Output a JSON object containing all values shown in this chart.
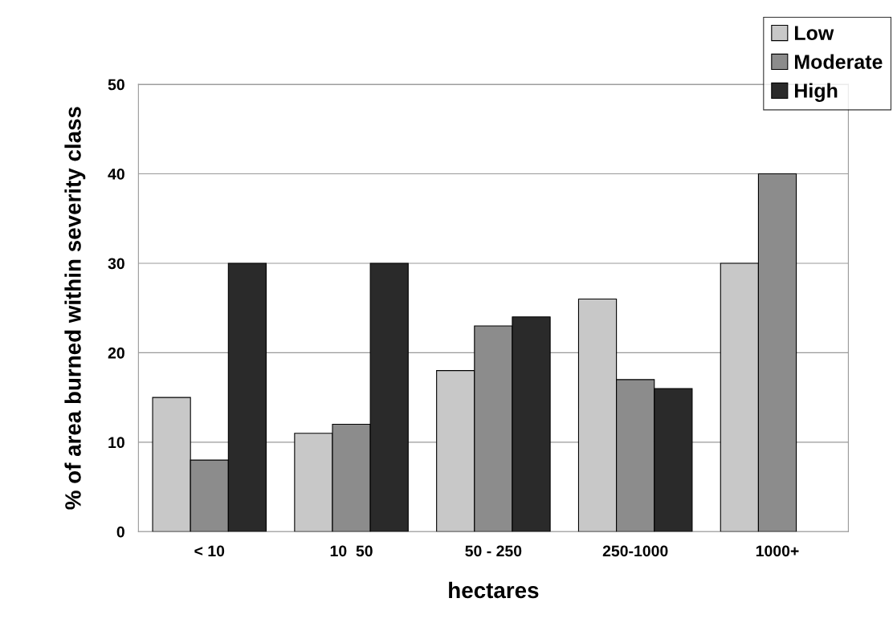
{
  "chart_data": {
    "type": "bar",
    "xlabel": "hectares",
    "ylabel": "% of area burned within severity class",
    "categories": [
      "< 10",
      "10  50",
      "50 - 250",
      "250-1000",
      "1000+"
    ],
    "series": [
      {
        "name": "Low",
        "color": "#c8c8c8",
        "values": [
          15,
          11,
          18,
          26,
          30
        ]
      },
      {
        "name": "Moderate",
        "color": "#8c8c8c",
        "values": [
          8,
          12,
          23,
          17,
          40
        ]
      },
      {
        "name": "High",
        "color": "#2a2a2a",
        "values": [
          30,
          30,
          24,
          16,
          null
        ]
      }
    ],
    "ylim": [
      0,
      50
    ],
    "yticks": [
      0,
      10,
      20,
      30,
      40,
      50
    ],
    "grid": "y",
    "legend": "top right"
  }
}
